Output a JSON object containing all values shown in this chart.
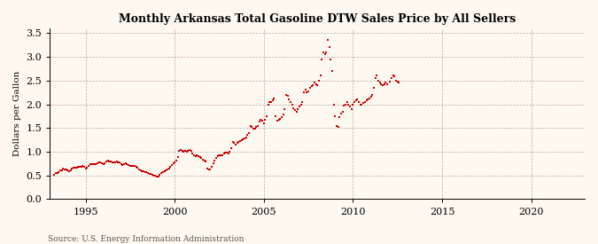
{
  "title": "Monthly Arkansas Total Gasoline DTW Sales Price by All Sellers",
  "ylabel": "Dollars per Gallon",
  "source": "Source: U.S. Energy Information Administration",
  "bg_color": "#fef9f0",
  "dot_color": "#cc0000",
  "xlim": [
    1993.0,
    2023.0
  ],
  "ylim": [
    0.0,
    3.6
  ],
  "yticks": [
    0.0,
    0.5,
    1.0,
    1.5,
    2.0,
    2.5,
    3.0,
    3.5
  ],
  "xticks": [
    1995,
    2000,
    2005,
    2010,
    2015,
    2020
  ],
  "data": [
    [
      1993.25,
      0.52
    ],
    [
      1993.33,
      0.55
    ],
    [
      1993.42,
      0.56
    ],
    [
      1993.5,
      0.57
    ],
    [
      1993.58,
      0.6
    ],
    [
      1993.67,
      0.61
    ],
    [
      1993.75,
      0.64
    ],
    [
      1993.83,
      0.63
    ],
    [
      1993.92,
      0.62
    ],
    [
      1994.0,
      0.6
    ],
    [
      1994.08,
      0.59
    ],
    [
      1994.17,
      0.61
    ],
    [
      1994.25,
      0.65
    ],
    [
      1994.33,
      0.66
    ],
    [
      1994.42,
      0.67
    ],
    [
      1994.5,
      0.66
    ],
    [
      1994.58,
      0.68
    ],
    [
      1994.67,
      0.68
    ],
    [
      1994.75,
      0.69
    ],
    [
      1994.83,
      0.7
    ],
    [
      1994.92,
      0.68
    ],
    [
      1995.0,
      0.65
    ],
    [
      1995.08,
      0.67
    ],
    [
      1995.17,
      0.7
    ],
    [
      1995.25,
      0.73
    ],
    [
      1995.33,
      0.74
    ],
    [
      1995.42,
      0.74
    ],
    [
      1995.5,
      0.74
    ],
    [
      1995.58,
      0.74
    ],
    [
      1995.67,
      0.76
    ],
    [
      1995.75,
      0.77
    ],
    [
      1995.83,
      0.77
    ],
    [
      1995.92,
      0.76
    ],
    [
      1996.0,
      0.73
    ],
    [
      1996.08,
      0.75
    ],
    [
      1996.17,
      0.79
    ],
    [
      1996.25,
      0.82
    ],
    [
      1996.33,
      0.8
    ],
    [
      1996.42,
      0.79
    ],
    [
      1996.5,
      0.78
    ],
    [
      1996.58,
      0.78
    ],
    [
      1996.67,
      0.78
    ],
    [
      1996.75,
      0.79
    ],
    [
      1996.83,
      0.78
    ],
    [
      1996.92,
      0.77
    ],
    [
      1997.0,
      0.73
    ],
    [
      1997.08,
      0.72
    ],
    [
      1997.17,
      0.73
    ],
    [
      1997.25,
      0.75
    ],
    [
      1997.33,
      0.74
    ],
    [
      1997.42,
      0.72
    ],
    [
      1997.5,
      0.71
    ],
    [
      1997.58,
      0.71
    ],
    [
      1997.67,
      0.71
    ],
    [
      1997.75,
      0.7
    ],
    [
      1997.83,
      0.69
    ],
    [
      1997.92,
      0.66
    ],
    [
      1998.0,
      0.62
    ],
    [
      1998.08,
      0.6
    ],
    [
      1998.17,
      0.59
    ],
    [
      1998.25,
      0.59
    ],
    [
      1998.33,
      0.57
    ],
    [
      1998.42,
      0.57
    ],
    [
      1998.5,
      0.55
    ],
    [
      1998.58,
      0.54
    ],
    [
      1998.67,
      0.53
    ],
    [
      1998.75,
      0.52
    ],
    [
      1998.83,
      0.5
    ],
    [
      1998.92,
      0.49
    ],
    [
      1999.0,
      0.47
    ],
    [
      1999.08,
      0.48
    ],
    [
      1999.17,
      0.51
    ],
    [
      1999.25,
      0.56
    ],
    [
      1999.33,
      0.57
    ],
    [
      1999.42,
      0.59
    ],
    [
      1999.5,
      0.61
    ],
    [
      1999.58,
      0.62
    ],
    [
      1999.67,
      0.65
    ],
    [
      1999.75,
      0.68
    ],
    [
      1999.83,
      0.72
    ],
    [
      1999.92,
      0.75
    ],
    [
      2000.0,
      0.78
    ],
    [
      2000.08,
      0.82
    ],
    [
      2000.17,
      0.88
    ],
    [
      2000.25,
      1.02
    ],
    [
      2000.33,
      1.04
    ],
    [
      2000.42,
      1.02
    ],
    [
      2000.5,
      1.0
    ],
    [
      2000.58,
      1.01
    ],
    [
      2000.67,
      1.0
    ],
    [
      2000.75,
      1.02
    ],
    [
      2000.83,
      1.04
    ],
    [
      2000.92,
      1.01
    ],
    [
      2001.0,
      0.97
    ],
    [
      2001.08,
      0.92
    ],
    [
      2001.17,
      0.9
    ],
    [
      2001.25,
      0.92
    ],
    [
      2001.33,
      0.9
    ],
    [
      2001.42,
      0.89
    ],
    [
      2001.5,
      0.86
    ],
    [
      2001.58,
      0.84
    ],
    [
      2001.67,
      0.82
    ],
    [
      2001.75,
      0.8
    ],
    [
      2001.83,
      0.64
    ],
    [
      2001.92,
      0.63
    ],
    [
      2002.0,
      0.63
    ],
    [
      2002.08,
      0.68
    ],
    [
      2002.17,
      0.75
    ],
    [
      2002.25,
      0.82
    ],
    [
      2002.33,
      0.86
    ],
    [
      2002.42,
      0.9
    ],
    [
      2002.5,
      0.92
    ],
    [
      2002.58,
      0.92
    ],
    [
      2002.67,
      0.93
    ],
    [
      2002.75,
      0.96
    ],
    [
      2002.83,
      0.98
    ],
    [
      2002.92,
      0.98
    ],
    [
      2003.0,
      0.97
    ],
    [
      2003.08,
      1.0
    ],
    [
      2003.17,
      1.07
    ],
    [
      2003.25,
      1.21
    ],
    [
      2003.33,
      1.18
    ],
    [
      2003.42,
      1.15
    ],
    [
      2003.5,
      1.18
    ],
    [
      2003.58,
      1.2
    ],
    [
      2003.67,
      1.22
    ],
    [
      2003.75,
      1.25
    ],
    [
      2003.83,
      1.27
    ],
    [
      2003.92,
      1.28
    ],
    [
      2004.0,
      1.3
    ],
    [
      2004.08,
      1.35
    ],
    [
      2004.17,
      1.4
    ],
    [
      2004.25,
      1.55
    ],
    [
      2004.33,
      1.52
    ],
    [
      2004.42,
      1.48
    ],
    [
      2004.5,
      1.48
    ],
    [
      2004.58,
      1.52
    ],
    [
      2004.67,
      1.55
    ],
    [
      2004.75,
      1.63
    ],
    [
      2004.83,
      1.68
    ],
    [
      2004.92,
      1.65
    ],
    [
      2005.0,
      1.6
    ],
    [
      2005.08,
      1.68
    ],
    [
      2005.17,
      1.75
    ],
    [
      2005.25,
      2.0
    ],
    [
      2005.33,
      2.05
    ],
    [
      2005.42,
      2.05
    ],
    [
      2005.5,
      2.08
    ],
    [
      2005.58,
      2.12
    ],
    [
      2005.67,
      1.75
    ],
    [
      2005.75,
      1.65
    ],
    [
      2005.83,
      1.68
    ],
    [
      2005.92,
      1.7
    ],
    [
      2006.0,
      1.72
    ],
    [
      2006.08,
      1.78
    ],
    [
      2006.17,
      1.9
    ],
    [
      2006.25,
      2.2
    ],
    [
      2006.33,
      2.18
    ],
    [
      2006.42,
      2.1
    ],
    [
      2006.5,
      2.05
    ],
    [
      2006.58,
      2.0
    ],
    [
      2006.67,
      1.92
    ],
    [
      2006.75,
      1.88
    ],
    [
      2006.83,
      1.85
    ],
    [
      2006.92,
      1.9
    ],
    [
      2007.0,
      1.95
    ],
    [
      2007.08,
      2.0
    ],
    [
      2007.17,
      2.05
    ],
    [
      2007.25,
      2.25
    ],
    [
      2007.33,
      2.3
    ],
    [
      2007.42,
      2.25
    ],
    [
      2007.5,
      2.28
    ],
    [
      2007.58,
      2.35
    ],
    [
      2007.67,
      2.38
    ],
    [
      2007.75,
      2.4
    ],
    [
      2007.83,
      2.45
    ],
    [
      2007.92,
      2.42
    ],
    [
      2008.0,
      2.4
    ],
    [
      2008.08,
      2.5
    ],
    [
      2008.17,
      2.6
    ],
    [
      2008.25,
      2.95
    ],
    [
      2008.33,
      3.1
    ],
    [
      2008.42,
      3.05
    ],
    [
      2008.5,
      3.1
    ],
    [
      2008.58,
      3.35
    ],
    [
      2008.67,
      3.2
    ],
    [
      2008.75,
      2.95
    ],
    [
      2008.83,
      2.7
    ],
    [
      2008.92,
      2.0
    ],
    [
      2009.0,
      1.75
    ],
    [
      2009.08,
      1.55
    ],
    [
      2009.17,
      1.52
    ],
    [
      2009.25,
      1.72
    ],
    [
      2009.33,
      1.8
    ],
    [
      2009.42,
      1.85
    ],
    [
      2009.5,
      1.98
    ],
    [
      2009.58,
      2.0
    ],
    [
      2009.67,
      2.05
    ],
    [
      2009.75,
      2.0
    ],
    [
      2009.83,
      1.95
    ],
    [
      2009.92,
      1.9
    ],
    [
      2010.0,
      2.0
    ],
    [
      2010.08,
      2.05
    ],
    [
      2010.17,
      2.08
    ],
    [
      2010.25,
      2.1
    ],
    [
      2010.33,
      2.05
    ],
    [
      2010.42,
      2.0
    ],
    [
      2010.5,
      2.0
    ],
    [
      2010.58,
      2.02
    ],
    [
      2010.67,
      2.05
    ],
    [
      2010.75,
      2.08
    ],
    [
      2010.83,
      2.1
    ],
    [
      2010.92,
      2.12
    ],
    [
      2011.0,
      2.15
    ],
    [
      2011.08,
      2.2
    ],
    [
      2011.17,
      2.35
    ],
    [
      2011.25,
      2.55
    ],
    [
      2011.33,
      2.6
    ],
    [
      2011.42,
      2.5
    ],
    [
      2011.5,
      2.45
    ],
    [
      2011.58,
      2.42
    ],
    [
      2011.67,
      2.4
    ],
    [
      2011.75,
      2.42
    ],
    [
      2011.83,
      2.45
    ],
    [
      2011.92,
      2.42
    ],
    [
      2012.08,
      2.48
    ],
    [
      2012.17,
      2.55
    ],
    [
      2012.25,
      2.6
    ],
    [
      2012.33,
      2.58
    ],
    [
      2012.42,
      2.5
    ],
    [
      2012.5,
      2.48
    ],
    [
      2012.58,
      2.45
    ]
  ]
}
